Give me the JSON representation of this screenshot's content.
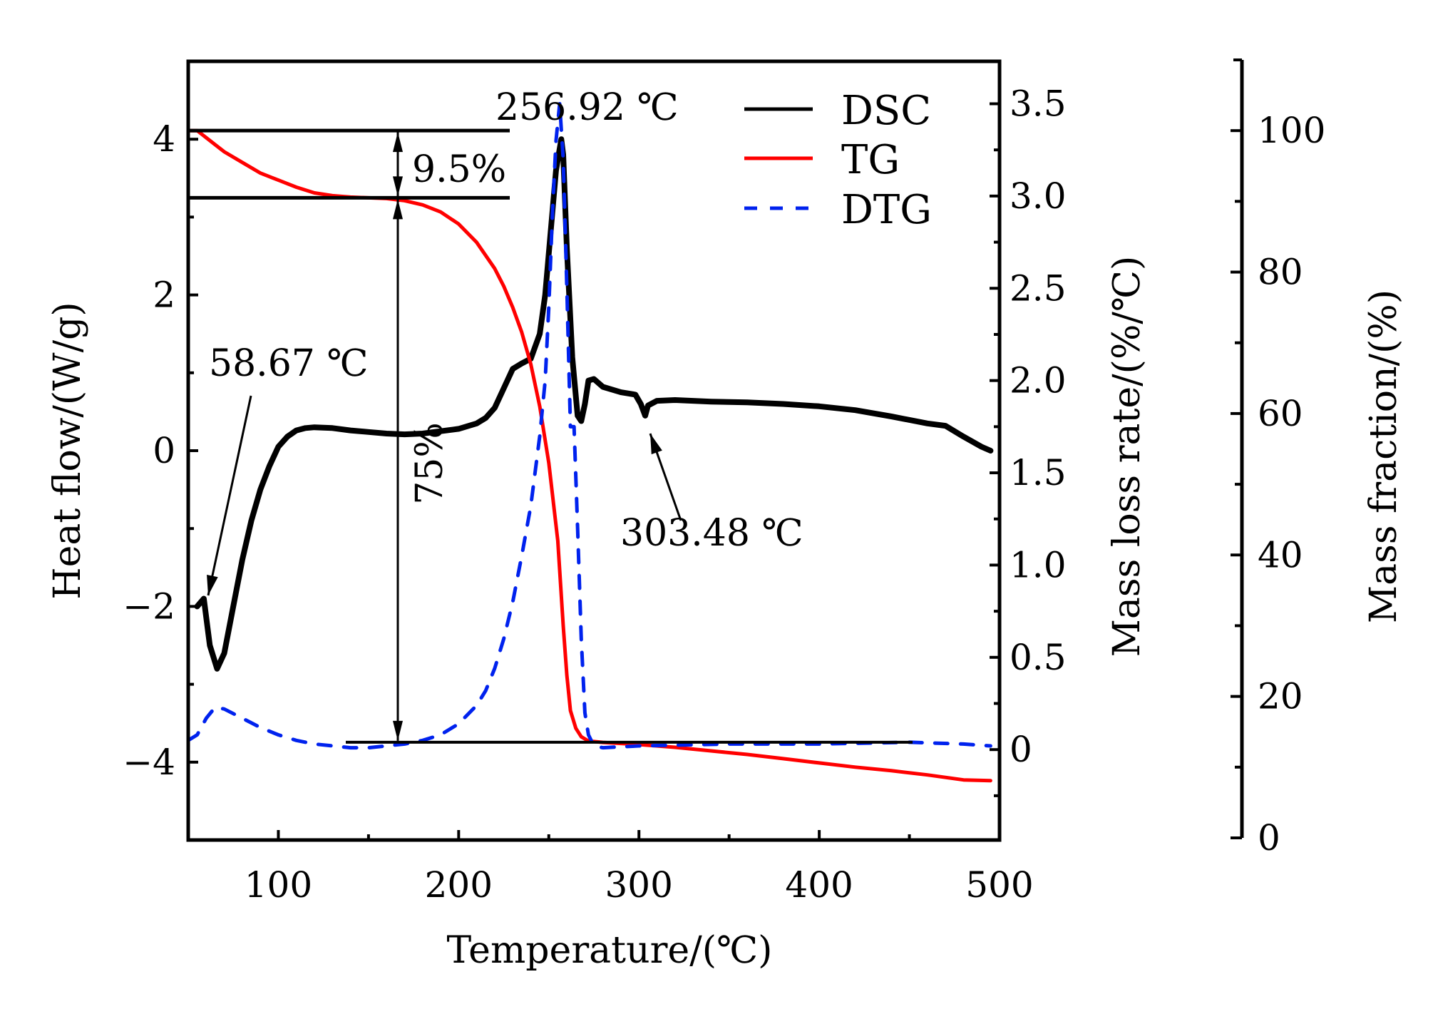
{
  "chart_data": {
    "type": "line",
    "title": "",
    "xlabel": "Temperature/(℃)",
    "xlim": [
      50,
      500
    ],
    "xticks": [
      100,
      200,
      300,
      400,
      500
    ],
    "axes": {
      "heat_flow": {
        "label": "Heat flow/(W/g)",
        "ylim": [
          -5,
          5
        ],
        "ticks": [
          -4,
          -2,
          0,
          2,
          4
        ],
        "tick_labels": [
          "−4",
          "−2",
          "0",
          "2",
          "4"
        ],
        "side": "left"
      },
      "mass_loss_rate": {
        "label": "Mass loss rate/(%/℃)",
        "ylim": [
          -0.49,
          3.73
        ],
        "ticks": [
          0,
          0.5,
          1.0,
          1.5,
          2.0,
          2.5,
          3.0,
          3.5
        ],
        "tick_labels": [
          "0",
          "0.5",
          "1.0",
          "1.5",
          "2.0",
          "2.5",
          "3.0",
          "3.5"
        ],
        "side": "right"
      },
      "mass_fraction": {
        "label": "Mass fraction/(%)",
        "ylim": [
          0,
          110
        ],
        "ticks": [
          0,
          20,
          40,
          60,
          80,
          100
        ],
        "tick_labels": [
          "0",
          "20",
          "40",
          "60",
          "80",
          "100"
        ],
        "side": "right-outer"
      }
    },
    "legend": {
      "position": "top-right",
      "entries": [
        "DSC",
        "TG",
        "DTG"
      ]
    },
    "series": [
      {
        "name": "DSC",
        "axis": "heat_flow",
        "color": "#000000",
        "style": "solid",
        "x": [
          55,
          58.67,
          62,
          66,
          70,
          75,
          80,
          85,
          90,
          95,
          100,
          105,
          110,
          115,
          120,
          130,
          140,
          150,
          160,
          170,
          180,
          190,
          200,
          210,
          215,
          220,
          225,
          230,
          235,
          240,
          245,
          248,
          251,
          254,
          256.92,
          258,
          260,
          263,
          266,
          268,
          270,
          272,
          275,
          280,
          290,
          298,
          301,
          303.48,
          305,
          310,
          320,
          340,
          360,
          380,
          400,
          420,
          440,
          460,
          470,
          480,
          490,
          495
        ],
        "y": [
          -2.0,
          -1.9,
          -2.5,
          -2.8,
          -2.6,
          -2.0,
          -1.4,
          -0.9,
          -0.5,
          -0.2,
          0.05,
          0.18,
          0.26,
          0.29,
          0.3,
          0.29,
          0.26,
          0.24,
          0.22,
          0.21,
          0.22,
          0.25,
          0.28,
          0.35,
          0.42,
          0.55,
          0.8,
          1.05,
          1.12,
          1.18,
          1.5,
          2.0,
          2.8,
          3.6,
          4.0,
          3.8,
          2.6,
          1.2,
          0.45,
          0.38,
          0.6,
          0.9,
          0.92,
          0.82,
          0.75,
          0.72,
          0.6,
          0.45,
          0.58,
          0.64,
          0.65,
          0.63,
          0.62,
          0.6,
          0.57,
          0.52,
          0.44,
          0.35,
          0.32,
          0.18,
          0.05,
          0.0
        ]
      },
      {
        "name": "TG",
        "axis": "mass_fraction",
        "color": "#ff0000",
        "style": "solid",
        "x": [
          50,
          55,
          60,
          65,
          70,
          80,
          90,
          100,
          110,
          120,
          130,
          140,
          150,
          160,
          170,
          180,
          190,
          200,
          210,
          220,
          225,
          230,
          235,
          240,
          245,
          250,
          255,
          258,
          260,
          262,
          265,
          268,
          272,
          280,
          300,
          320,
          340,
          360,
          380,
          400,
          420,
          440,
          460,
          480,
          495
        ],
        "y": [
          100,
          100,
          99,
          98,
          97,
          95.5,
          94,
          93,
          92,
          91.2,
          90.8,
          90.6,
          90.5,
          90.4,
          90.1,
          89.5,
          88.5,
          86.8,
          84.2,
          80.5,
          78,
          75,
          71.5,
          67,
          61,
          53,
          42,
          30,
          23,
          18,
          15.5,
          14.3,
          13.7,
          13.5,
          13.2,
          12.8,
          12.3,
          11.8,
          11.2,
          10.6,
          10.0,
          9.5,
          8.9,
          8.2,
          8.1
        ]
      },
      {
        "name": "DTG",
        "axis": "mass_loss_rate",
        "color": "#0022ee",
        "style": "dashed",
        "x": [
          50,
          55,
          60,
          65,
          70,
          80,
          90,
          100,
          110,
          120,
          130,
          140,
          150,
          160,
          170,
          180,
          190,
          200,
          210,
          215,
          220,
          225,
          230,
          235,
          240,
          245,
          248,
          250,
          252,
          254,
          256,
          258,
          260,
          262,
          264,
          266,
          268,
          270,
          272,
          275,
          280,
          300,
          350,
          400,
          450,
          480,
          495
        ],
        "y": [
          0.05,
          0.08,
          0.17,
          0.23,
          0.22,
          0.17,
          0.12,
          0.08,
          0.05,
          0.03,
          0.02,
          0.01,
          0.01,
          0.02,
          0.03,
          0.05,
          0.08,
          0.14,
          0.24,
          0.32,
          0.44,
          0.6,
          0.8,
          1.05,
          1.32,
          1.7,
          2.0,
          2.4,
          2.9,
          3.3,
          3.5,
          3.2,
          2.5,
          1.75,
          1.75,
          1.2,
          0.6,
          0.2,
          0.08,
          0.02,
          0.01,
          0.02,
          0.03,
          0.03,
          0.04,
          0.03,
          0.02
        ]
      }
    ],
    "annotations": [
      {
        "text": "256.92 ℃",
        "x": 256.92,
        "series": "DSC",
        "type": "peak-label"
      },
      {
        "text": "58.67 ℃",
        "x": 58.67,
        "series": "DSC",
        "type": "arrow-label"
      },
      {
        "text": "303.48 ℃",
        "x": 303.48,
        "series": "DSC",
        "type": "arrow-label"
      },
      {
        "text": "9.5%",
        "type": "mass-loss-step",
        "from_mass": 100,
        "to_mass": 90.5
      },
      {
        "text": "75%",
        "type": "mass-loss-step",
        "from_mass": 90.5,
        "to_mass": 15.5
      }
    ]
  }
}
